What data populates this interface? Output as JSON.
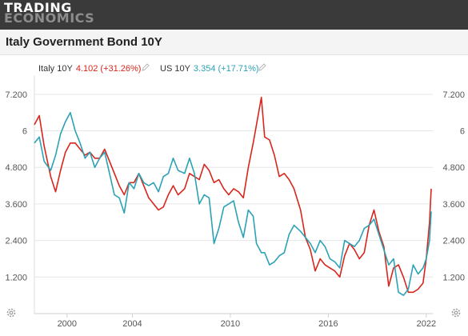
{
  "brand": {
    "line1": "TRADING",
    "line2": "ECONOMICS"
  },
  "header": {
    "title": "Italy Government Bond 10Y"
  },
  "legend": [
    {
      "name": "Italy 10Y",
      "value": "4.102",
      "change": "(+31.26%)",
      "color": "#d9261c"
    },
    {
      "name": "US 10Y",
      "value": "3.354",
      "change": "(+17.71%)",
      "color": "#2ba2b5"
    }
  ],
  "icons": {
    "edit": "pencil-icon",
    "settings": "gear-icon"
  },
  "chart_data": {
    "type": "line",
    "title": "Italy Government Bond 10Y",
    "xlabel": "",
    "ylabel": "",
    "xlim": [
      1998.0,
      2022.4
    ],
    "ylim": [
      0,
      7.8
    ],
    "y_ticks": [
      1.2,
      2.4,
      3.6,
      4.8,
      6,
      7.2
    ],
    "y_tick_labels": [
      "1.200",
      "2.400",
      "3.600",
      "4.800",
      "6",
      "7.200"
    ],
    "x_ticks": [
      2000,
      2004,
      2010,
      2016,
      2022
    ],
    "x_tick_labels": [
      "2000",
      "2004",
      "2010",
      "2016",
      "2022"
    ],
    "grid": true,
    "legend_position": "top-left",
    "series": [
      {
        "name": "Italy 10Y",
        "color": "#d9261c",
        "x": [
          1998.0,
          1998.3,
          1998.6,
          1999.0,
          1999.3,
          1999.6,
          1999.9,
          2000.2,
          2000.5,
          2000.8,
          2001.1,
          2001.4,
          2001.7,
          2002.0,
          2002.3,
          2002.6,
          2002.9,
          2003.2,
          2003.5,
          2003.8,
          2004.1,
          2004.4,
          2004.7,
          2005.0,
          2005.3,
          2005.6,
          2005.9,
          2006.2,
          2006.5,
          2006.8,
          2007.2,
          2007.5,
          2007.8,
          2008.1,
          2008.4,
          2008.7,
          2009.0,
          2009.3,
          2009.6,
          2009.9,
          2010.2,
          2010.5,
          2010.8,
          2011.1,
          2011.4,
          2011.6,
          2011.9,
          2012.1,
          2012.4,
          2012.7,
          2013.0,
          2013.3,
          2013.6,
          2013.9,
          2014.3,
          2014.6,
          2014.9,
          2015.2,
          2015.5,
          2015.8,
          2016.1,
          2016.4,
          2016.7,
          2017.0,
          2017.3,
          2017.6,
          2017.9,
          2018.2,
          2018.5,
          2018.8,
          2019.1,
          2019.4,
          2019.7,
          2020.0,
          2020.3,
          2020.6,
          2020.9,
          2021.2,
          2021.5,
          2021.8,
          2022.0,
          2022.2,
          2022.3
        ],
        "values": [
          6.2,
          6.5,
          5.5,
          4.5,
          4.0,
          4.7,
          5.3,
          5.6,
          5.6,
          5.4,
          5.2,
          5.3,
          5.1,
          5.1,
          5.4,
          5.0,
          4.6,
          4.2,
          3.9,
          4.3,
          4.3,
          4.6,
          4.2,
          3.8,
          3.6,
          3.4,
          3.5,
          3.9,
          4.2,
          3.9,
          4.1,
          4.6,
          4.5,
          4.4,
          4.9,
          4.7,
          4.3,
          4.4,
          4.1,
          3.9,
          4.1,
          4.0,
          3.8,
          4.8,
          5.6,
          6.2,
          7.1,
          5.8,
          5.7,
          5.2,
          4.5,
          4.6,
          4.4,
          4.1,
          3.4,
          2.5,
          2.1,
          1.4,
          1.8,
          1.6,
          1.5,
          1.4,
          1.2,
          1.9,
          2.3,
          2.1,
          1.8,
          2.0,
          2.9,
          3.4,
          2.7,
          2.2,
          0.9,
          1.5,
          1.6,
          1.2,
          0.7,
          0.7,
          0.8,
          1.0,
          1.8,
          3.0,
          4.1
        ]
      },
      {
        "name": "US 10Y",
        "color": "#2ba2b5",
        "x": [
          1998.0,
          1998.3,
          1998.6,
          1999.0,
          1999.3,
          1999.6,
          1999.9,
          2000.2,
          2000.5,
          2000.8,
          2001.1,
          2001.4,
          2001.7,
          2002.0,
          2002.3,
          2002.6,
          2002.9,
          2003.2,
          2003.5,
          2003.8,
          2004.1,
          2004.4,
          2004.7,
          2005.0,
          2005.3,
          2005.6,
          2005.9,
          2006.2,
          2006.5,
          2006.8,
          2007.2,
          2007.5,
          2007.8,
          2008.1,
          2008.4,
          2008.7,
          2009.0,
          2009.3,
          2009.6,
          2009.9,
          2010.2,
          2010.5,
          2010.8,
          2011.1,
          2011.4,
          2011.6,
          2011.9,
          2012.1,
          2012.4,
          2012.7,
          2013.0,
          2013.3,
          2013.6,
          2013.9,
          2014.3,
          2014.6,
          2014.9,
          2015.2,
          2015.5,
          2015.8,
          2016.1,
          2016.4,
          2016.7,
          2017.0,
          2017.3,
          2017.6,
          2017.9,
          2018.2,
          2018.5,
          2018.8,
          2019.1,
          2019.4,
          2019.7,
          2020.0,
          2020.3,
          2020.6,
          2020.9,
          2021.2,
          2021.5,
          2021.8,
          2022.0,
          2022.2,
          2022.3
        ],
        "values": [
          5.6,
          5.8,
          5.0,
          4.7,
          5.2,
          5.9,
          6.3,
          6.6,
          6.0,
          5.6,
          5.1,
          5.3,
          4.8,
          5.1,
          5.3,
          4.6,
          3.9,
          3.8,
          3.3,
          4.3,
          4.1,
          4.6,
          4.3,
          4.2,
          4.3,
          4.0,
          4.5,
          4.6,
          5.1,
          4.7,
          4.6,
          5.1,
          4.6,
          3.6,
          3.9,
          3.8,
          2.3,
          2.8,
          3.5,
          3.6,
          3.7,
          3.0,
          2.5,
          3.4,
          3.2,
          2.3,
          2.0,
          2.0,
          1.6,
          1.7,
          1.9,
          2.0,
          2.6,
          2.9,
          2.7,
          2.5,
          2.3,
          2.0,
          2.4,
          2.2,
          1.8,
          1.7,
          1.5,
          2.4,
          2.3,
          2.2,
          2.4,
          2.8,
          2.9,
          3.1,
          2.6,
          2.1,
          1.6,
          1.8,
          0.7,
          0.6,
          0.8,
          1.6,
          1.3,
          1.5,
          1.8,
          2.4,
          3.35
        ]
      }
    ]
  }
}
